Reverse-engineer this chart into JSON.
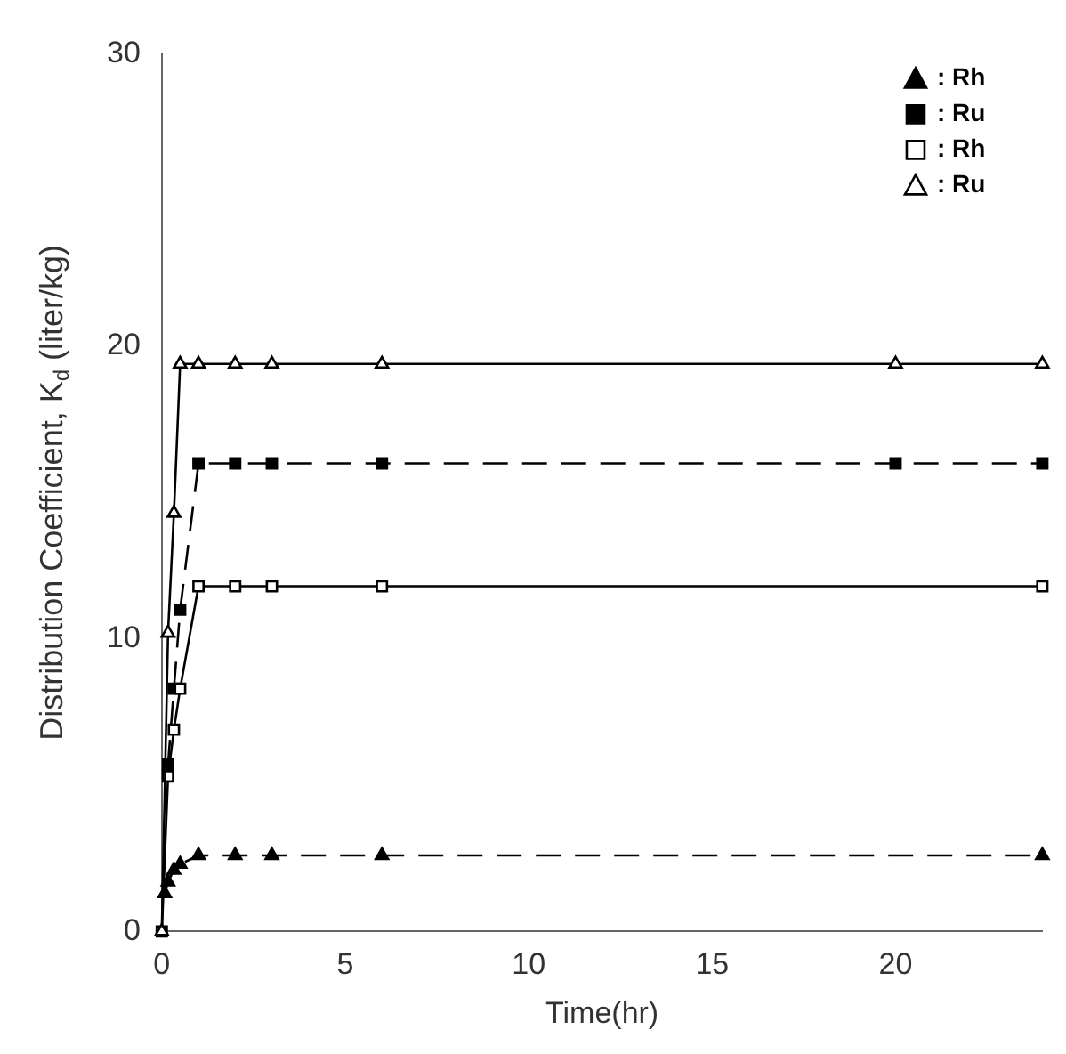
{
  "chart_data": {
    "type": "line",
    "xlabel": "Time(hr)",
    "ylabel": "Distribution Coefficient, K$_{d}$ (liter/kg)",
    "xlim": [
      0,
      24
    ],
    "xticks": [
      0,
      5,
      10,
      15,
      20
    ],
    "ylim": [
      0,
      30
    ],
    "yticks": [
      0,
      10,
      20,
      30
    ],
    "grid": false,
    "legend": "top right",
    "series": [
      {
        "name": ": Rh",
        "color": "#000000",
        "marker": "triangle",
        "line_style": "dashed",
        "x": [
          0.08,
          0.17,
          0.33,
          0.5,
          1,
          2,
          3,
          6,
          24
        ],
        "values": [
          1.3,
          1.7,
          2.1,
          2.3,
          2.6,
          2.6,
          2.6,
          2.6,
          2.6
        ]
      },
      {
        "name": ": Ru",
        "color": "#000000",
        "marker": "square",
        "line_style": "dashed",
        "x": [
          0.17,
          0.33,
          0.5,
          1,
          2,
          3,
          6,
          20,
          24
        ],
        "values": [
          5.7,
          8.3,
          11,
          16,
          16,
          16,
          16,
          16,
          16
        ]
      },
      {
        "name": ": Rh",
        "color": "#000000",
        "marker": "square",
        "line_style": "solid",
        "x": [
          0,
          0.17,
          0.33,
          0.5,
          1,
          2,
          3,
          6,
          24
        ],
        "values": [
          0,
          5.3,
          6.9,
          8.3,
          11.8,
          11.8,
          11.8,
          11.8,
          11.8
        ]
      },
      {
        "name": ": Ru",
        "color": "#000000",
        "marker": "triangle",
        "line_style": "solid",
        "x": [
          0,
          0.17,
          0.33,
          0.5,
          1,
          2,
          3,
          6,
          20,
          24
        ],
        "values": [
          0,
          10.2,
          14.3,
          19.4,
          19.4,
          19.4,
          19.4,
          19.4,
          19.4,
          19.4
        ]
      }
    ]
  }
}
